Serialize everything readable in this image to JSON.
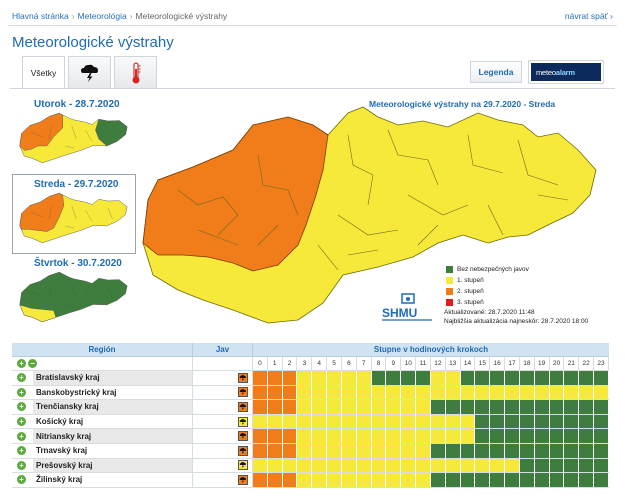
{
  "breadcrumb": {
    "home": "Hlavná stránka",
    "section": "Meteorológia",
    "current": "Meteorologické výstrahy"
  },
  "back_link": "návrat späť",
  "page_title": "Meteorologické výstrahy",
  "tabs": {
    "all": "Všetky",
    "storm_icon": "thunderstorm-icon",
    "heat_icon": "thermometer-icon"
  },
  "legend_button": "Legenda",
  "meteoalarm": {
    "prefix": "meteo",
    "suffix": "alarm"
  },
  "days": [
    {
      "label": "Utorok - 28.7.2020"
    },
    {
      "label": "Streda - 29.7.2020",
      "selected": true
    },
    {
      "label": "Štvrtok - 30.7.2020"
    }
  ],
  "map_title": "Meteorologické výstrahy na 29.7.2020 - Streda",
  "legend": [
    {
      "label": "Bez nebezpečných javov",
      "color": "#3f7d3f"
    },
    {
      "label": "1. stupeň",
      "color": "#f7e93a"
    },
    {
      "label": "2. stupeň",
      "color": "#f07c1a"
    },
    {
      "label": "3. stupeň",
      "color": "#e31b1b"
    }
  ],
  "shmu_logo": "SHMU",
  "updated": "Aktualizované: 28.7.2020 11:48",
  "next_update": "Najbližšia aktualizácia najneskôr: 28.7.2020 18:00",
  "colors": {
    "green": "#3f7d3f",
    "yellow": "#f7e93a",
    "orange": "#f07c1a",
    "red": "#e31b1b"
  },
  "table": {
    "header_region": "Región",
    "header_jav": "Jav",
    "header_hours": "Stupne v hodinových krokoch",
    "hours": [
      "0",
      "1",
      "2",
      "3",
      "4",
      "5",
      "6",
      "7",
      "8",
      "9",
      "10",
      "11",
      "12",
      "13",
      "14",
      "15",
      "16",
      "17",
      "18",
      "19",
      "20",
      "21",
      "22",
      "23"
    ],
    "rows": [
      {
        "name": "Bratislavský kraj",
        "jav_icon": "thunderstorm-icon",
        "jav_level": "orange",
        "levels": "OOOYYYYYGGGGYYGGGGGGGGGG"
      },
      {
        "name": "Banskobystrický kraj",
        "jav_icon": "thunderstorm-icon",
        "jav_level": "orange",
        "levels": "OOOYYYYYYYYYYYYYYYYYYYYY"
      },
      {
        "name": "Trenčiansky kraj",
        "jav_icon": "thunderstorm-icon",
        "jav_level": "orange",
        "levels": "OOOYYYYYYYYYGGGGGGGGGGGG"
      },
      {
        "name": "Košický kraj",
        "jav_icon": "thunderstorm-icon",
        "jav_level": "yellow",
        "levels": "YYYYYYYYYYYYYYYGGGGGGGGG"
      },
      {
        "name": "Nitriansky kraj",
        "jav_icon": "thunderstorm-icon",
        "jav_level": "orange",
        "levels": "OOOYYYYYYYYYYYYGGGGGGGGG"
      },
      {
        "name": "Trnavský kraj",
        "jav_icon": "thunderstorm-icon",
        "jav_level": "orange",
        "levels": "OOOYYYYYYYYYGGGGGGGGGGGG"
      },
      {
        "name": "Prešovský kraj",
        "jav_icon": "thunderstorm-icon",
        "jav_level": "yellow",
        "levels": "YYYYYYYYYYYYYYYYYYGGGGGG"
      },
      {
        "name": "Žilinský kraj",
        "jav_icon": "thunderstorm-icon",
        "jav_level": "orange",
        "levels": "OOOYYYYYYYYYGGGGGGGGGGGG"
      }
    ]
  }
}
